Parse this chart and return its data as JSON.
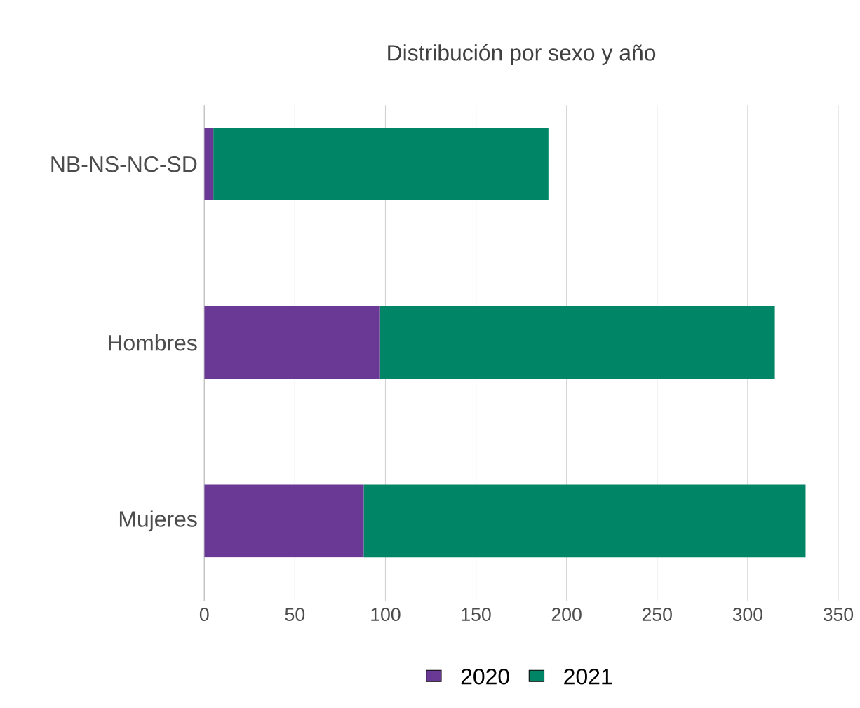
{
  "chart_data": {
    "type": "bar",
    "orientation": "horizontal",
    "stacked": true,
    "title": "Distribución por sexo y año",
    "categories": [
      "NB-NS-NC-SD",
      "Hombres",
      "Mujeres"
    ],
    "series": [
      {
        "name": "2020",
        "color": "#6a3996",
        "values": [
          5,
          97,
          88
        ]
      },
      {
        "name": "2021",
        "color": "#008566",
        "values": [
          185,
          218,
          244
        ]
      }
    ],
    "xlim": [
      0,
      350
    ],
    "xticks": [
      0,
      50,
      100,
      150,
      200,
      250,
      300,
      350
    ],
    "grid": "x",
    "legend": "bottom"
  }
}
